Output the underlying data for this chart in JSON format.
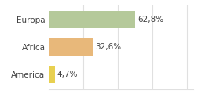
{
  "categories": [
    "Europa",
    "Africa",
    "America"
  ],
  "values": [
    62.8,
    32.6,
    4.7
  ],
  "labels": [
    "62,8%",
    "32,6%",
    "4,7%"
  ],
  "bar_colors": [
    "#b5c99a",
    "#e8b87a",
    "#e8d050"
  ],
  "background_color": "#ffffff",
  "xlim": [
    0,
    105
  ],
  "bar_height": 0.65,
  "label_fontsize": 7.5,
  "category_fontsize": 7.5,
  "grid_color": "#e0e0e0"
}
